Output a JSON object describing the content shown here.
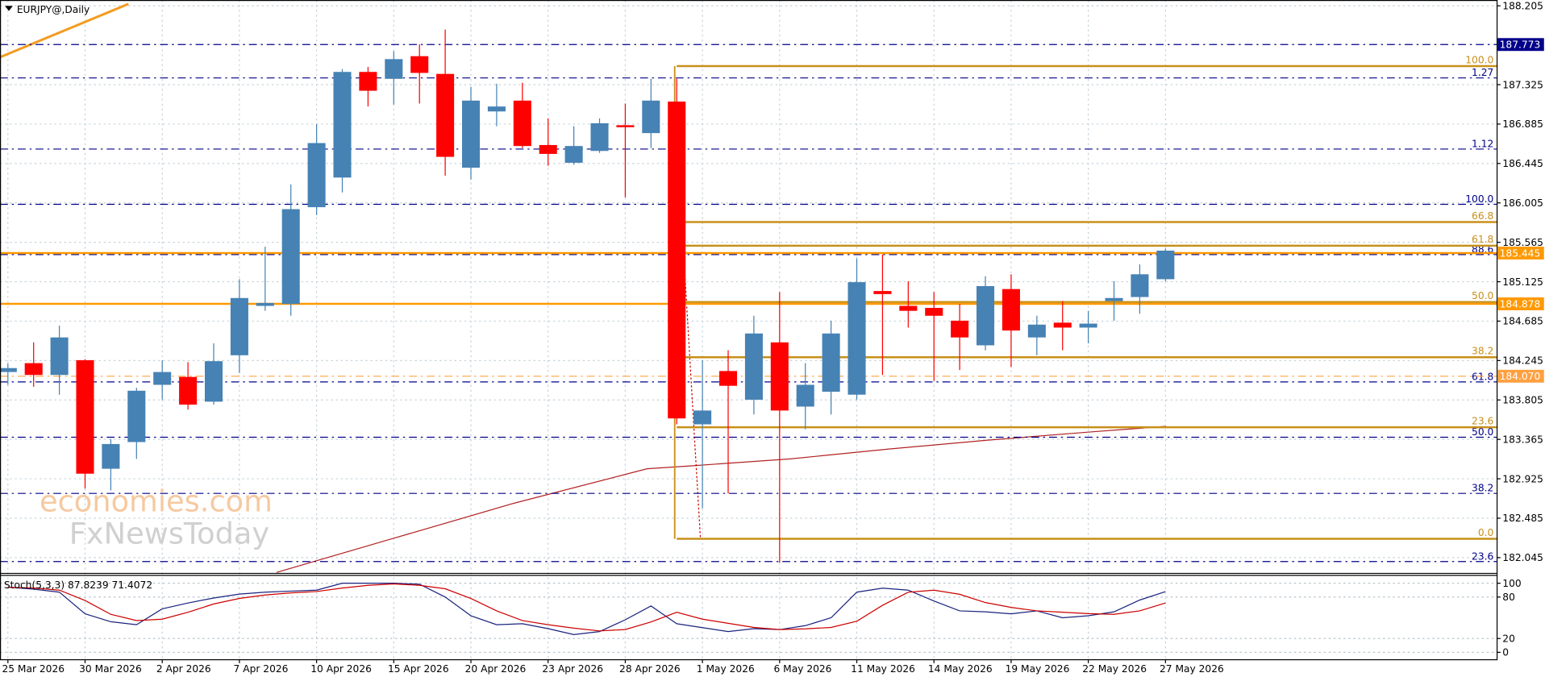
{
  "chart_data": [
    {
      "type": "candlestick",
      "title": "EURJPY@,Daily",
      "x": [
        "25 Mar 2026",
        null,
        null,
        "30 Mar 2026",
        null,
        null,
        "2 Apr 2026",
        null,
        null,
        "7 Apr 2026",
        null,
        null,
        "10 Apr 2026",
        null,
        null,
        "15 Apr 2026",
        null,
        null,
        "20 Apr 2026",
        null,
        null,
        "23 Apr 2026",
        null,
        null,
        "28 Apr 2026",
        null,
        null,
        "1 May 2026",
        null,
        null,
        "6 May 2026",
        null,
        null,
        "11 May 2026",
        null,
        null,
        "14 May 2026",
        null,
        null,
        "19 May 2026",
        null,
        null,
        "22 May 2026",
        null,
        null,
        "27 May 2026"
      ],
      "open": [
        184.117,
        184.216,
        184.084,
        184.249,
        183.037,
        183.335,
        183.974,
        184.062,
        183.786,
        184.304,
        184.855,
        184.877,
        185.957,
        186.288,
        187.467,
        187.39,
        187.643,
        187.445,
        186.398,
        187.026,
        187.147,
        186.651,
        186.453,
        186.585,
        186.872,
        186.784,
        187.136,
        183.533,
        184.128,
        183.808,
        184.448,
        183.731,
        183.897,
        183.864,
        185.021,
        184.855,
        184.833,
        184.69,
        184.415,
        185.043,
        184.503,
        184.668,
        184.613,
        184.91,
        184.954,
        185.153
      ],
      "high": [
        184.216,
        184.448,
        184.635,
        184.26,
        183.368,
        183.941,
        184.249,
        184.227,
        184.437,
        185.153,
        185.516,
        186.211,
        186.883,
        187.5,
        187.522,
        187.698,
        187.775,
        187.941,
        187.301,
        187.335,
        187.346,
        186.949,
        186.861,
        186.949,
        187.114,
        187.39,
        187.39,
        184.249,
        184.359,
        184.745,
        185.01,
        184.216,
        184.69,
        185.384,
        185.428,
        185.131,
        185.01,
        184.877,
        185.186,
        185.208,
        184.745,
        184.91,
        184.8,
        185.131,
        185.318,
        185.494
      ],
      "low": [
        183.974,
        183.952,
        183.864,
        182.817,
        182.795,
        183.147,
        183.808,
        183.698,
        183.753,
        184.106,
        184.8,
        184.745,
        185.869,
        186.122,
        187.081,
        187.103,
        187.114,
        186.31,
        186.266,
        186.861,
        186.618,
        186.42,
        186.431,
        186.563,
        186.067,
        186.618,
        183.533,
        182.596,
        182.762,
        183.643,
        181.99,
        183.478,
        183.643,
        183.808,
        184.084,
        184.613,
        184.018,
        184.139,
        184.359,
        184.172,
        184.304,
        184.359,
        184.437,
        184.69,
        184.767,
        185.131
      ],
      "close": [
        184.161,
        184.084,
        184.503,
        182.982,
        183.313,
        183.908,
        184.117,
        183.753,
        184.238,
        184.943,
        184.888,
        185.935,
        186.673,
        187.467,
        187.257,
        187.61,
        187.456,
        186.519,
        187.147,
        187.081,
        186.64,
        186.552,
        186.64,
        186.894,
        186.85,
        187.147,
        183.599,
        183.687,
        183.963,
        184.547,
        183.687,
        183.974,
        184.547,
        185.12,
        184.987,
        184.8,
        184.745,
        184.503,
        185.076,
        184.58,
        184.646,
        184.613,
        184.657,
        184.943,
        185.208,
        185.472
      ],
      "up_color": "#4682b4",
      "down_color": "#ff0000",
      "ylim": [
        181.88,
        188.27
      ],
      "yticks": [
        188.205,
        187.325,
        186.885,
        186.445,
        186.005,
        185.565,
        185.125,
        184.685,
        184.245,
        183.805,
        183.365,
        182.925,
        182.485,
        182.045
      ],
      "grid": true,
      "h_lines": [
        {
          "price": 187.773,
          "color": "#00008b",
          "style": "dash",
          "box": true
        },
        {
          "price": 187.4,
          "color": "#00008b",
          "style": "dash",
          "label": "1.27"
        },
        {
          "price": 186.606,
          "color": "#00008b",
          "style": "dash",
          "label": "1.12"
        },
        {
          "price": 185.989,
          "color": "#00008b",
          "style": "dash",
          "label": "100.0"
        },
        {
          "price": 185.428,
          "color": "#00008b",
          "style": "dash",
          "label": "88.6"
        },
        {
          "price": 184.006,
          "color": "#00008b",
          "style": "dash",
          "label": "61.8"
        },
        {
          "price": 183.389,
          "color": "#00008b",
          "style": "dash",
          "label": "50.0"
        },
        {
          "price": 182.762,
          "color": "#00008b",
          "style": "dash",
          "label": "38.2"
        },
        {
          "price": 182.001,
          "color": "#00008b",
          "style": "dash",
          "label": "23.6"
        },
        {
          "price": 185.445,
          "color": "#ff9900",
          "style": "solid",
          "box": true
        },
        {
          "price": 184.878,
          "color": "#ff9900",
          "style": "solid",
          "box": true
        },
        {
          "price": {
            "value": 184.07,
            "label": "184.070"
          },
          "color": "#ffa040",
          "style": "dash",
          "box": true
        }
      ],
      "fib_levels": [
        {
          "price": 187.532,
          "label": "100.0"
        },
        {
          "price": 185.791,
          "label": "66.8"
        },
        {
          "price": 185.527,
          "label": "61.8"
        },
        {
          "price": 184.899,
          "label": "50.0"
        },
        {
          "price": 184.282,
          "label": "38.2"
        },
        {
          "price": 183.5,
          "label": "23.6"
        },
        {
          "price": 182.255,
          "label": "0.0"
        }
      ],
      "fib_color": "#c8901a",
      "watermark": [
        "economies.com",
        "FxNewsToday"
      ]
    },
    {
      "type": "line",
      "title": "Stoch(5,3,3)",
      "series": [
        {
          "color": "#1a237e",
          "values": [
            94.3,
            91.4,
            87.1,
            55.7,
            44.3,
            40.0,
            62.9,
            71.4,
            78.6,
            84.3,
            87.1,
            88.6,
            90.0,
            100,
            100,
            100,
            98.6,
            80.0,
            52.9,
            40.0,
            41.4,
            34.3,
            25.7,
            30.0,
            47.1,
            67.1,
            41.4,
            35.7,
            30.0,
            34.3,
            32.9,
            38.6,
            50.0,
            87.1,
            92.9,
            90.0,
            74.3,
            60.0,
            58.6,
            55.7,
            60.0,
            50.0,
            52.9,
            58.6,
            75.7,
            87.8239
          ]
        },
        {
          "color": "#cc0000",
          "values": [
            94,
            93,
            90,
            75,
            55,
            46,
            48,
            58,
            70,
            78,
            83,
            86,
            88,
            93,
            97,
            99,
            97,
            92,
            78,
            60,
            46,
            40,
            35,
            31,
            33,
            44,
            58,
            48,
            42,
            36,
            33,
            34,
            36,
            45,
            68,
            87,
            90,
            84,
            72,
            65,
            60,
            58,
            56,
            55,
            60,
            71.4072
          ]
        }
      ],
      "ylim": [
        -10,
        111.4
      ],
      "yticks": [
        0,
        20,
        80,
        100
      ],
      "grid": true
    }
  ]
}
